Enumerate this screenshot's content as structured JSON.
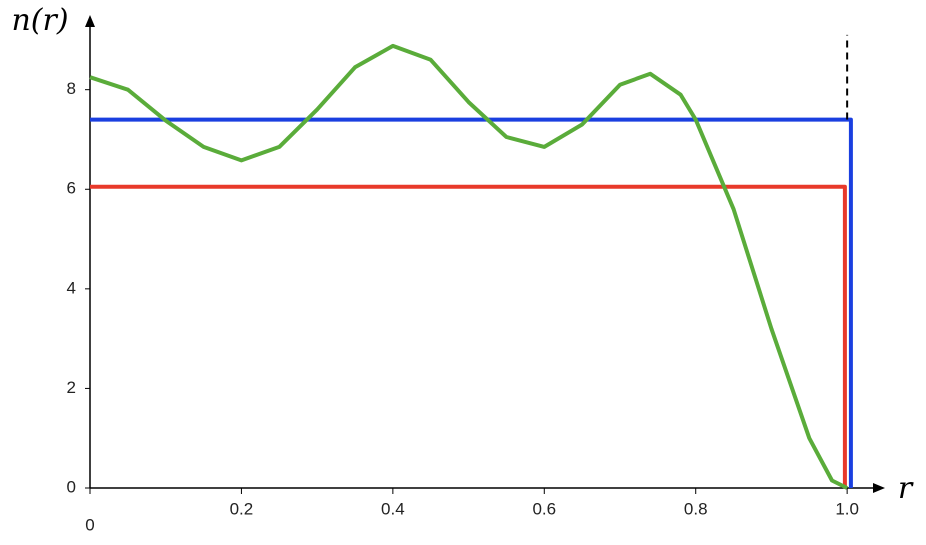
{
  "chart_data": {
    "type": "line",
    "x_label": "r",
    "y_label": "n(r)",
    "xlim": [
      0,
      1.05
    ],
    "ylim": [
      0,
      9.5
    ],
    "xticks": [
      0,
      0.2,
      0.4,
      0.6,
      0.8,
      {
        "value": 1,
        "label": "1.0"
      }
    ],
    "yticks": [
      0,
      2,
      4,
      6,
      8
    ],
    "series": [
      {
        "color": "#1a3fe0",
        "x": [
          0,
          1.005,
          1.005
        ],
        "values": [
          7.4,
          7.4,
          0
        ]
      },
      {
        "color": "#e8392a",
        "x": [
          0,
          0.997,
          0.997
        ],
        "values": [
          6.05,
          6.05,
          0
        ]
      },
      {
        "color": "#5aac3a",
        "x": [
          0,
          0.05,
          0.1,
          0.15,
          0.2,
          0.25,
          0.3,
          0.35,
          0.4,
          0.45,
          0.5,
          0.55,
          0.6,
          0.65,
          0.7,
          0.74,
          0.78,
          0.8,
          0.85,
          0.9,
          0.95,
          0.98,
          1.0
        ],
        "values": [
          8.25,
          8.0,
          7.38,
          6.85,
          6.58,
          6.85,
          7.6,
          8.45,
          8.88,
          8.6,
          7.75,
          7.05,
          6.85,
          7.3,
          8.1,
          8.32,
          7.9,
          7.4,
          5.6,
          3.2,
          1.0,
          0.15,
          0
        ]
      }
    ],
    "vlines": [
      {
        "x": 1.0,
        "ymin": 7.4,
        "ymax": 9.1,
        "color": "#000",
        "dashed": true
      }
    ]
  }
}
